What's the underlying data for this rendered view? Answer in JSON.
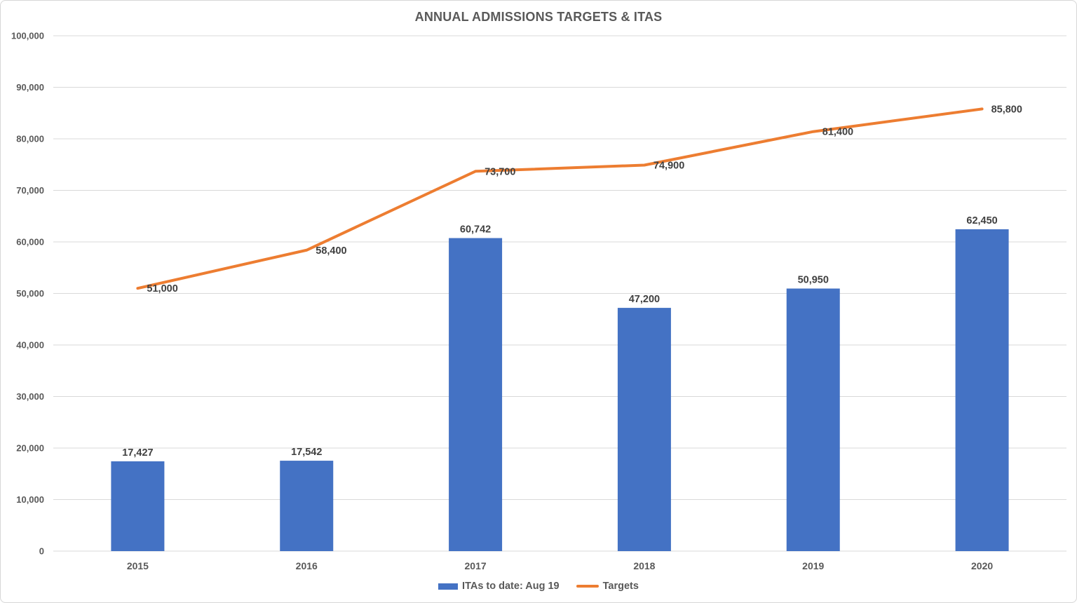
{
  "chart_data": {
    "type": "bar+line",
    "title": "ANNUAL ADMISSIONS TARGETS & ITAS",
    "categories": [
      "2015",
      "2016",
      "2017",
      "2018",
      "2019",
      "2020"
    ],
    "series": [
      {
        "name": "ITAs to date: Aug 19",
        "type": "bar",
        "color": "#4472C4",
        "values": [
          17427,
          17542,
          60742,
          47200,
          50950,
          62450
        ],
        "labels": [
          "17,427",
          "17,542",
          "60,742",
          "47,200",
          "50,950",
          "62,450"
        ]
      },
      {
        "name": "Targets",
        "type": "line",
        "color": "#ED7D31",
        "values": [
          51000,
          58400,
          73700,
          74900,
          81400,
          85800
        ],
        "labels": [
          "51,000",
          "58,400",
          "73,700",
          "74,900",
          "81,400",
          "85,800"
        ]
      }
    ],
    "y_axis": {
      "min": 0,
      "max": 100000,
      "step": 10000,
      "tick_labels": [
        "0",
        "10,000",
        "20,000",
        "30,000",
        "40,000",
        "50,000",
        "60,000",
        "70,000",
        "80,000",
        "90,000",
        "100,000"
      ]
    },
    "grid": true,
    "legend_position": "bottom",
    "colors": {
      "gridline": "#d9d9d9",
      "axis_line": "#d9d9d9",
      "title_text": "#595959",
      "tick_text": "#595959",
      "data_label_text": "#404040"
    }
  }
}
